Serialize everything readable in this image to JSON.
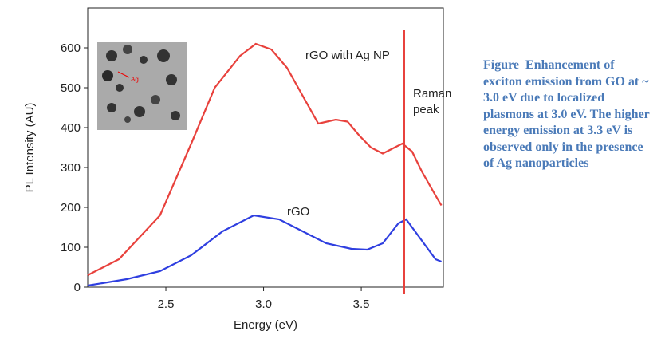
{
  "chart_data": {
    "type": "line",
    "xlabel": "Energy (eV)",
    "ylabel": "PL Intensity (AU)",
    "xlim": [
      2.1,
      3.92
    ],
    "ylim": [
      0,
      700
    ],
    "xticks": [
      2.5,
      {
        "value": 3,
        "label": "3.0"
      },
      3.5
    ],
    "yticks": [
      0,
      100,
      200,
      300,
      400,
      500,
      600
    ],
    "series": [
      {
        "name": "rGO with Ag NP",
        "color": "#e8413c",
        "x": [
          2.1,
          2.26,
          2.47,
          2.63,
          2.75,
          2.88,
          2.96,
          3.04,
          3.12,
          3.2,
          3.28,
          3.37,
          3.43,
          3.49,
          3.55,
          3.61,
          3.67,
          3.71,
          3.76,
          3.81,
          3.88,
          3.91
        ],
        "values": [
          30,
          70,
          180,
          360,
          500,
          580,
          610,
          596,
          550,
          480,
          410,
          420,
          415,
          380,
          350,
          335,
          350,
          360,
          340,
          290,
          230,
          205
        ]
      },
      {
        "name": "rGO",
        "color": "#2f3fe0",
        "x": [
          2.1,
          2.3,
          2.47,
          2.63,
          2.79,
          2.95,
          3.08,
          3.2,
          3.32,
          3.45,
          3.53,
          3.61,
          3.69,
          3.73,
          3.79,
          3.88,
          3.91
        ],
        "values": [
          4,
          20,
          40,
          80,
          140,
          180,
          170,
          140,
          110,
          96,
          94,
          110,
          160,
          170,
          130,
          70,
          64
        ]
      }
    ],
    "annotation": {
      "text": "Raman peak",
      "x": 3.72,
      "color": "#e8413c"
    },
    "inset_label": "Ag"
  },
  "caption": "Figure  Enhancement of exciton emission from GO at ~ 3.0 eV due to localized plasmons at 3.0 eV. The higher energy emission at 3.3 eV is observed only in the presence of Ag nanoparticles"
}
